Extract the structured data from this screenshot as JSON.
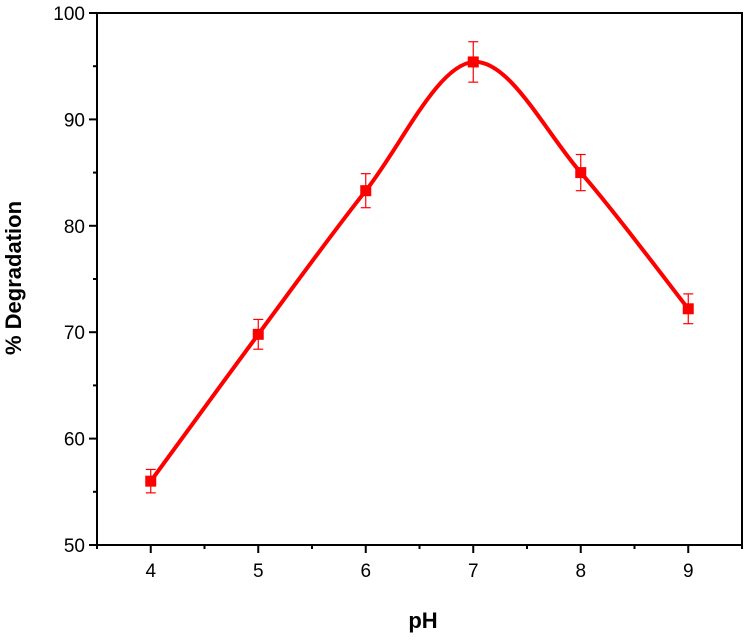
{
  "chart_data": {
    "type": "line",
    "title": "",
    "xlabel": "pH",
    "ylabel": "% Degradation",
    "xlim": [
      3.5,
      9.5
    ],
    "ylim": [
      50,
      100
    ],
    "xticks": [
      4,
      5,
      6,
      7,
      8,
      9
    ],
    "yticks": [
      50,
      60,
      70,
      80,
      90,
      100
    ],
    "x_tick_labels": [
      "4",
      "5",
      "6",
      "7",
      "8",
      "9"
    ],
    "y_tick_labels": [
      "50",
      "60",
      "70",
      "80",
      "90",
      "100"
    ],
    "grid": false,
    "legend": "none",
    "smooth": true,
    "marker": "square",
    "color": "#ff0000",
    "series": [
      {
        "x": [
          4,
          5,
          6,
          7,
          8,
          9
        ],
        "values": [
          56.0,
          69.8,
          83.3,
          95.4,
          85.0,
          72.2
        ],
        "error": [
          1.1,
          1.4,
          1.6,
          1.9,
          1.7,
          1.4
        ]
      }
    ]
  }
}
